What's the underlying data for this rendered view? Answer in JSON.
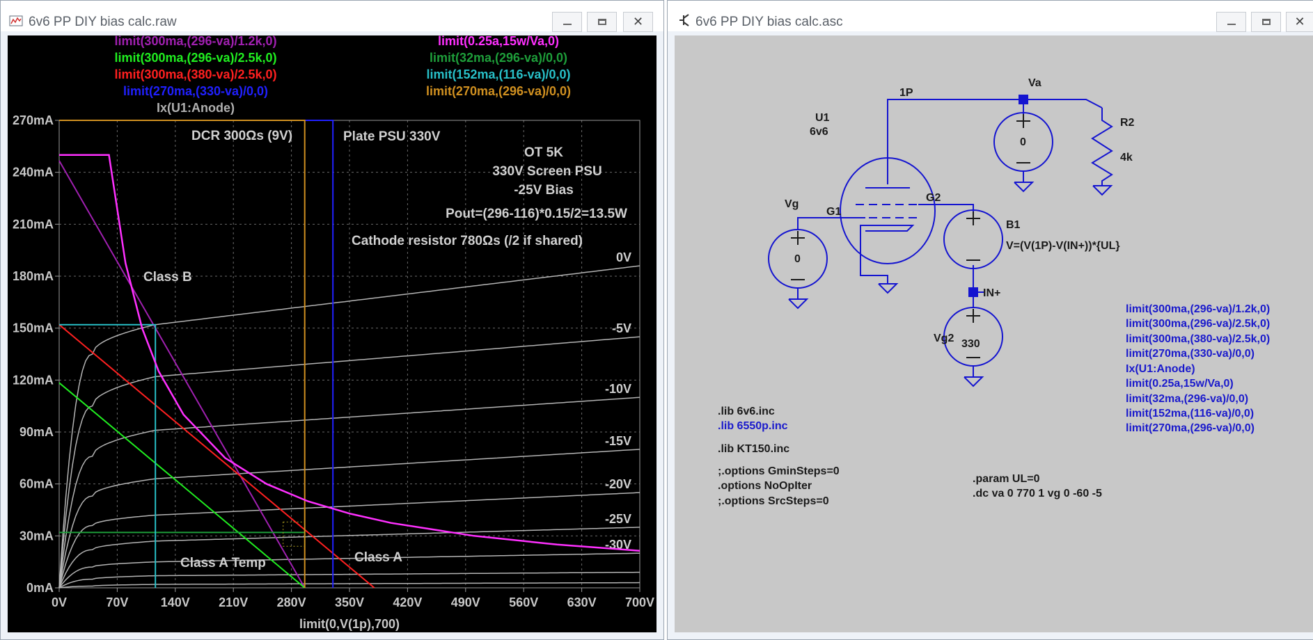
{
  "plot_window": {
    "title": "6v6 PP DIY bias calc.raw",
    "traces": [
      {
        "label": "limit(300ma,(296-va)/1.2k,0)",
        "color": "#a020b0"
      },
      {
        "label": "limit(0.25a,15w/Va,0)",
        "color": "#ff30ff"
      },
      {
        "label": "limit(300ma,(296-va)/2.5k,0)",
        "color": "#20ee20"
      },
      {
        "label": "limit(32ma,(296-va)/0,0)",
        "color": "#1e9e3a"
      },
      {
        "label": "limit(300ma,(380-va)/2.5k,0)",
        "color": "#ff2020"
      },
      {
        "label": "limit(152ma,(116-va)/0,0)",
        "color": "#28c0c8"
      },
      {
        "label": "limit(270ma,(330-va)/0,0)",
        "color": "#2020ff"
      },
      {
        "label": "limit(270ma,(296-va)/0,0)",
        "color": "#d09020"
      },
      {
        "label": "Ix(U1:Anode)",
        "color": "#b0b0b0"
      }
    ],
    "annotations": {
      "dcr": "DCR 300Ωs (9V)",
      "plate_psu": "Plate PSU 330V",
      "ot": "OT 5K",
      "screen_psu": "330V Screen PSU",
      "bias": "-25V Bias",
      "pout": "Pout=(296-116)*0.15/2=13.5W",
      "cathode": "Cathode resistor 780Ωs (/2 if shared)",
      "class_b": "Class B",
      "class_a_temp": "Class A Temp",
      "class_a": "Class A"
    },
    "curve_labels": [
      "0V",
      "-5V",
      "-10V",
      "-15V",
      "-20V",
      "-25V",
      "-30V"
    ],
    "x_axis_label": "limit(0,V(1p),700)"
  },
  "chart_data": {
    "type": "line",
    "xlim": [
      0,
      700
    ],
    "ylim": [
      0,
      270
    ],
    "x_ticks": [
      "0V",
      "70V",
      "140V",
      "210V",
      "280V",
      "350V",
      "420V",
      "490V",
      "560V",
      "630V",
      "700V"
    ],
    "y_ticks": [
      "0mA",
      "30mA",
      "60mA",
      "90mA",
      "120mA",
      "150mA",
      "180mA",
      "210mA",
      "240mA",
      "270mA"
    ],
    "xlabel": "limit(0,V(1p),700)",
    "ylabel": "",
    "grid": true,
    "plate_curves": [
      {
        "name": "0V",
        "x": [
          0,
          40,
          116,
          700
        ],
        "y": [
          0,
          135,
          152,
          186
        ]
      },
      {
        "name": "-5V",
        "x": [
          0,
          40,
          116,
          700
        ],
        "y": [
          0,
          105,
          122,
          145
        ]
      },
      {
        "name": "-10V",
        "x": [
          0,
          40,
          116,
          700
        ],
        "y": [
          0,
          76,
          91,
          110
        ]
      },
      {
        "name": "-15V",
        "x": [
          0,
          40,
          116,
          700
        ],
        "y": [
          0,
          53,
          63,
          80
        ]
      },
      {
        "name": "-20V",
        "x": [
          0,
          40,
          116,
          700
        ],
        "y": [
          0,
          36,
          42,
          55
        ]
      },
      {
        "name": "-25V",
        "x": [
          0,
          40,
          116,
          700
        ],
        "y": [
          0,
          22,
          27,
          35
        ]
      },
      {
        "name": "-30V",
        "x": [
          0,
          40,
          116,
          700
        ],
        "y": [
          0,
          12,
          15,
          20
        ]
      },
      {
        "name": "",
        "x": [
          0,
          40,
          116,
          700
        ],
        "y": [
          0,
          5,
          7,
          9
        ]
      },
      {
        "name": "",
        "x": [
          0,
          40,
          116,
          700
        ],
        "y": [
          0,
          1,
          2,
          3
        ]
      }
    ],
    "load_lines": [
      {
        "name": "limit(300ma,(296-va)/1.2k,0)",
        "x": [
          0,
          296
        ],
        "y": [
          246.7,
          0
        ]
      },
      {
        "name": "limit(300ma,(296-va)/2.5k,0)",
        "x": [
          0,
          296
        ],
        "y": [
          118.4,
          0
        ]
      },
      {
        "name": "limit(300ma,(380-va)/2.5k,0)",
        "x": [
          0,
          380
        ],
        "y": [
          152,
          0
        ]
      },
      {
        "name": "limit(32ma,(296-va)/0,0)",
        "x": [
          0,
          296
        ],
        "y": [
          32,
          32
        ]
      },
      {
        "name": "limit(152ma,(116-va)/0,0)",
        "x": [
          0,
          116,
          116
        ],
        "y": [
          152,
          152,
          0
        ]
      },
      {
        "name": "limit(270ma,(330-va)/0,0)",
        "x": [
          0,
          330,
          330
        ],
        "y": [
          270,
          270,
          0
        ]
      },
      {
        "name": "limit(270ma,(296-va)/0,0)",
        "x": [
          0,
          296,
          296
        ],
        "y": [
          270,
          270,
          0
        ]
      }
    ],
    "power_curve": {
      "name": "limit(0.25a,15w/Va,0)",
      "x": [
        0,
        60,
        80,
        100,
        120,
        150,
        200,
        250,
        300,
        350,
        400,
        500,
        600,
        700
      ],
      "y": [
        250,
        250,
        187.5,
        150,
        125,
        100,
        75,
        60,
        50,
        42.9,
        37.5,
        30,
        25,
        21.4
      ]
    }
  },
  "schematic_window": {
    "title": "6v6 PP DIY bias calc.asc",
    "components": {
      "u1_name": "U1",
      "u1_value": "6v6",
      "net_1p": "1P",
      "net_va": "Va",
      "va_value": "0",
      "r2_name": "R2",
      "r2_value": "4k",
      "vg_name": "Vg",
      "vg_value": "0",
      "net_g1": "G1",
      "net_g2": "G2",
      "b1_name": "B1",
      "b1_expr": "V=(V(1P)-V(IN+))*{UL}",
      "net_in": "IN+",
      "vg2_name": "Vg2",
      "vg2_value": "330"
    },
    "directives_left": [
      {
        "text": ".lib 6v6.inc",
        "color": "#000000"
      },
      {
        "text": ".lib 6550p.inc",
        "color": "#1a1acc"
      },
      {
        "text": ".lib KT150.inc",
        "color": "#000000"
      },
      {
        "text": ";.options GminSteps=0",
        "color": "#000000"
      },
      {
        "text": ".options NoOpIter",
        "color": "#000000"
      },
      {
        "text": ";.options SrcSteps=0",
        "color": "#000000"
      }
    ],
    "directives_mid": [
      ".param UL=0",
      ".dc va 0 770 1 vg 0 -60 -5"
    ],
    "directives_right": [
      "limit(300ma,(296-va)/1.2k,0)",
      "limit(300ma,(296-va)/2.5k,0)",
      "limit(300ma,(380-va)/2.5k,0)",
      "limit(270ma,(330-va)/0,0)",
      "Ix(U1:Anode)",
      "limit(0.25a,15w/Va,0)",
      "limit(32ma,(296-va)/0,0)",
      "limit(152ma,(116-va)/0,0)",
      "limit(270ma,(296-va)/0,0)"
    ]
  }
}
